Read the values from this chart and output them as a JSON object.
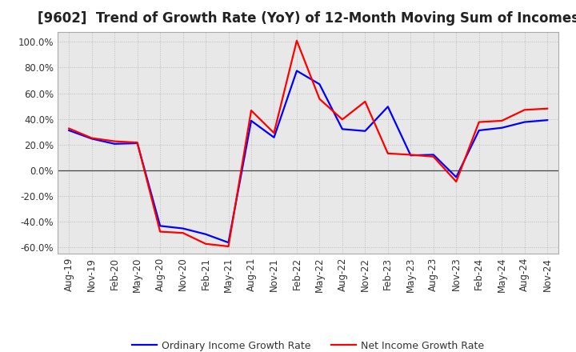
{
  "title": "[9602]  Trend of Growth Rate (YoY) of 12-Month Moving Sum of Incomes",
  "ylim": [
    -0.65,
    1.08
  ],
  "yticks": [
    -0.6,
    -0.4,
    -0.2,
    0.0,
    0.2,
    0.4,
    0.6,
    0.8,
    1.0
  ],
  "x_labels": [
    "Aug-19",
    "Nov-19",
    "Feb-20",
    "May-20",
    "Aug-20",
    "Nov-20",
    "Feb-21",
    "May-21",
    "Aug-21",
    "Nov-21",
    "Feb-22",
    "May-22",
    "Aug-22",
    "Nov-22",
    "Feb-23",
    "May-23",
    "Aug-23",
    "Nov-23",
    "Feb-24",
    "May-24",
    "Aug-24",
    "Nov-24"
  ],
  "ordinary_income": [
    0.31,
    0.245,
    0.205,
    0.21,
    -0.435,
    -0.455,
    -0.5,
    -0.565,
    0.385,
    0.255,
    0.775,
    0.67,
    0.32,
    0.305,
    0.495,
    0.115,
    0.12,
    -0.055,
    0.31,
    0.33,
    0.375,
    0.39
  ],
  "net_income": [
    0.325,
    0.25,
    0.225,
    0.215,
    -0.48,
    -0.49,
    -0.575,
    -0.595,
    0.465,
    0.29,
    1.01,
    0.555,
    0.395,
    0.535,
    0.13,
    0.12,
    0.105,
    -0.09,
    0.375,
    0.385,
    0.47,
    0.48
  ],
  "ordinary_color": "#0000ff",
  "net_color": "#ff0000",
  "line_width": 1.6,
  "background_color": "#ffffff",
  "plot_bg_color": "#e8e8e8",
  "grid_color": "#bbbbbb",
  "legend_ordinary": "Ordinary Income Growth Rate",
  "legend_net": "Net Income Growth Rate",
  "title_fontsize": 12,
  "tick_fontsize": 8.5
}
